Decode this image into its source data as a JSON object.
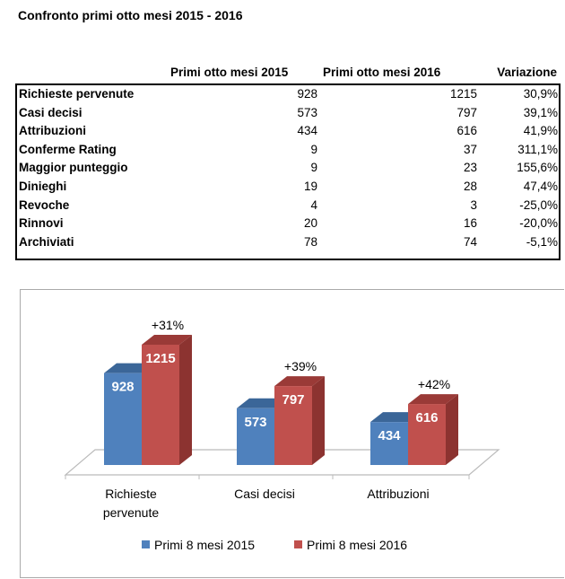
{
  "title": "Confronto primi otto mesi 2015 - 2016",
  "table": {
    "headers": [
      "Primi otto mesi 2015",
      "Primi otto mesi 2016",
      "Variazione"
    ],
    "rows": [
      [
        "Richieste pervenute",
        "928",
        "1215",
        "30,9%"
      ],
      [
        "Casi decisi",
        "573",
        "797",
        "39,1%"
      ],
      [
        "Attribuzioni",
        "434",
        "616",
        "41,9%"
      ],
      [
        "Conferme Rating",
        "9",
        "37",
        "311,1%"
      ],
      [
        "Maggior punteggio",
        "9",
        "23",
        "155,6%"
      ],
      [
        "Dinieghi",
        "19",
        "28",
        "47,4%"
      ],
      [
        "Revoche",
        "4",
        "3",
        "-25,0%"
      ],
      [
        "Rinnovi",
        "20",
        "16",
        "-20,0%"
      ],
      [
        "Archiviati",
        "78",
        "74",
        "-5,1%"
      ]
    ]
  },
  "chart_data": {
    "type": "bar",
    "categories": [
      "Richieste pervenute",
      "Casi decisi",
      "Attribuzioni"
    ],
    "category_lines": [
      [
        "Richieste",
        "pervenute"
      ],
      [
        "Casi decisi"
      ],
      [
        "Attribuzioni"
      ]
    ],
    "series": [
      {
        "name": "Primi 8 mesi 2015",
        "values": [
          928,
          573,
          434
        ],
        "color": "#4f81bd",
        "top": "#3b6698",
        "side": "#36608f"
      },
      {
        "name": "Primi 8 mesi 2016",
        "values": [
          1215,
          797,
          616
        ],
        "color": "#c0504d",
        "top": "#9a3a37",
        "side": "#8c3330"
      }
    ],
    "annotations": [
      "+31%",
      "+39%",
      "+42%"
    ],
    "legend": "bottom",
    "ylim": [
      0,
      1300
    ]
  }
}
